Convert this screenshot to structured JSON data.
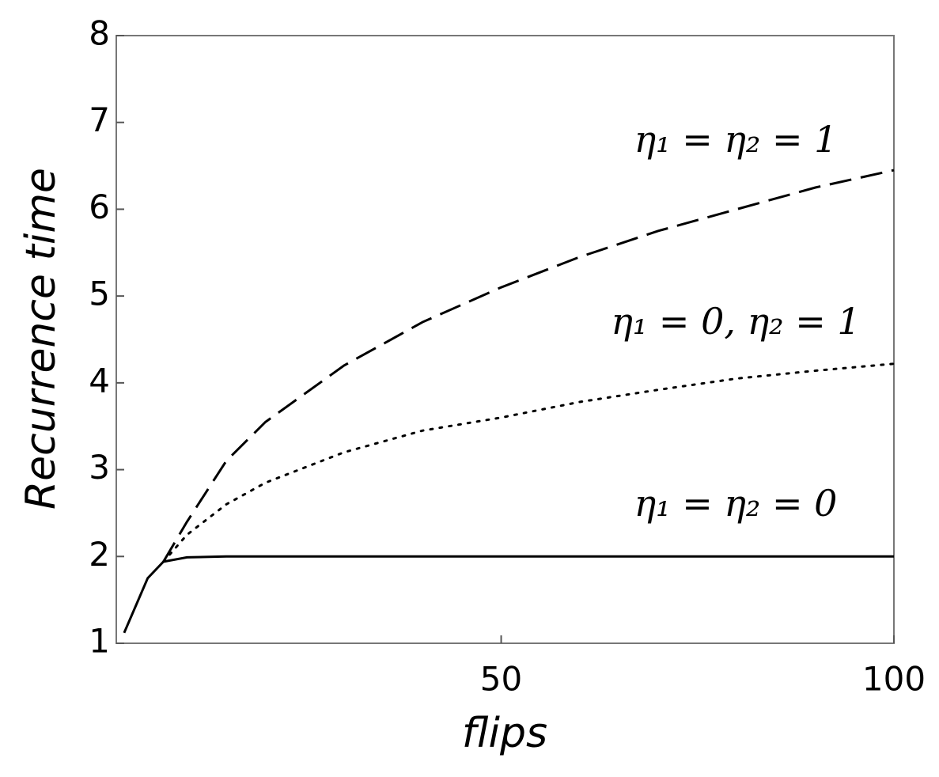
{
  "chart_data": {
    "type": "line",
    "x_label": "flips",
    "y_label": "Recurrence time",
    "x": [
      2,
      5,
      7,
      10,
      15,
      20,
      30,
      40,
      50,
      60,
      70,
      80,
      90,
      100
    ],
    "series": [
      {
        "name": "η₁ = η₂ = 1",
        "color": "#000000",
        "dash": "dashed",
        "values": [
          null,
          null,
          1.94,
          2.4,
          3.1,
          3.55,
          4.2,
          4.7,
          5.1,
          5.45,
          5.75,
          6.0,
          6.25,
          6.45
        ]
      },
      {
        "name": "η₁ = 0, η₂ = 1",
        "color": "#000000",
        "dash": "dotted",
        "values": [
          null,
          null,
          1.94,
          2.25,
          2.6,
          2.85,
          3.2,
          3.45,
          3.6,
          3.78,
          3.92,
          4.05,
          4.14,
          4.22
        ]
      },
      {
        "name": "η₁ = η₂ = 0",
        "color": "#000000",
        "dash": "solid",
        "values": [
          1.12,
          1.75,
          1.94,
          1.99,
          2.0,
          2.0,
          2.0,
          2.0,
          2.0,
          2.0,
          2.0,
          2.0,
          2.0,
          2.0
        ]
      }
    ],
    "xlim": [
      1,
      100
    ],
    "ylim": [
      1,
      8
    ],
    "xticks": [
      50,
      100
    ],
    "yticks": [
      1,
      2,
      3,
      4,
      5,
      6,
      7,
      8
    ],
    "grid": false
  }
}
